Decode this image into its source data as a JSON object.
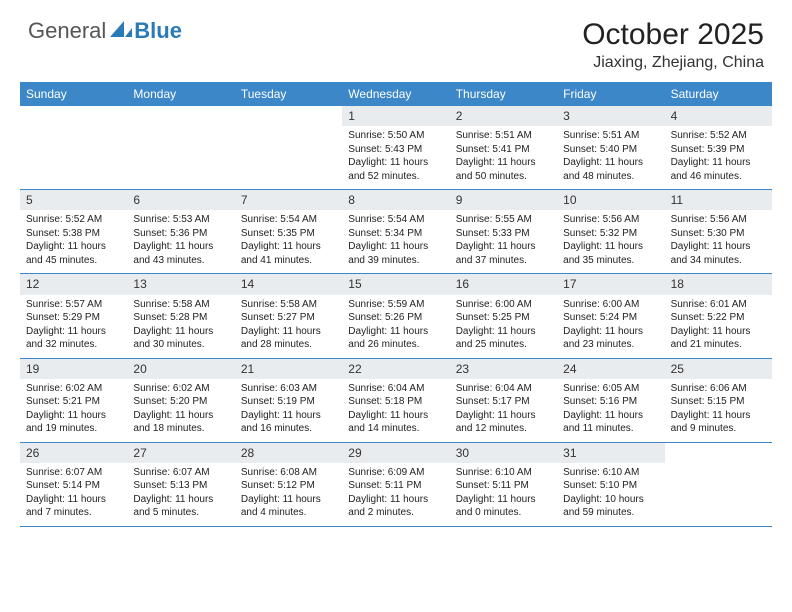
{
  "logo": {
    "text1": "General",
    "text2": "Blue"
  },
  "title": "October 2025",
  "location": "Jiaxing, Zhejiang, China",
  "colors": {
    "header_bg": "#3b87c8",
    "daynum_bg": "#e9ecef",
    "border": "#3b87c8",
    "logo_blue": "#2a7ab8",
    "text": "#222222",
    "background": "#ffffff"
  },
  "dayNames": [
    "Sunday",
    "Monday",
    "Tuesday",
    "Wednesday",
    "Thursday",
    "Friday",
    "Saturday"
  ],
  "weeks": [
    [
      {
        "num": "",
        "sunrise": "",
        "sunset": "",
        "daylight": "",
        "empty": true
      },
      {
        "num": "",
        "sunrise": "",
        "sunset": "",
        "daylight": "",
        "empty": true
      },
      {
        "num": "",
        "sunrise": "",
        "sunset": "",
        "daylight": "",
        "empty": true
      },
      {
        "num": "1",
        "sunrise": "5:50 AM",
        "sunset": "5:43 PM",
        "daylight": "11 hours and 52 minutes."
      },
      {
        "num": "2",
        "sunrise": "5:51 AM",
        "sunset": "5:41 PM",
        "daylight": "11 hours and 50 minutes."
      },
      {
        "num": "3",
        "sunrise": "5:51 AM",
        "sunset": "5:40 PM",
        "daylight": "11 hours and 48 minutes."
      },
      {
        "num": "4",
        "sunrise": "5:52 AM",
        "sunset": "5:39 PM",
        "daylight": "11 hours and 46 minutes."
      }
    ],
    [
      {
        "num": "5",
        "sunrise": "5:52 AM",
        "sunset": "5:38 PM",
        "daylight": "11 hours and 45 minutes."
      },
      {
        "num": "6",
        "sunrise": "5:53 AM",
        "sunset": "5:36 PM",
        "daylight": "11 hours and 43 minutes."
      },
      {
        "num": "7",
        "sunrise": "5:54 AM",
        "sunset": "5:35 PM",
        "daylight": "11 hours and 41 minutes."
      },
      {
        "num": "8",
        "sunrise": "5:54 AM",
        "sunset": "5:34 PM",
        "daylight": "11 hours and 39 minutes."
      },
      {
        "num": "9",
        "sunrise": "5:55 AM",
        "sunset": "5:33 PM",
        "daylight": "11 hours and 37 minutes."
      },
      {
        "num": "10",
        "sunrise": "5:56 AM",
        "sunset": "5:32 PM",
        "daylight": "11 hours and 35 minutes."
      },
      {
        "num": "11",
        "sunrise": "5:56 AM",
        "sunset": "5:30 PM",
        "daylight": "11 hours and 34 minutes."
      }
    ],
    [
      {
        "num": "12",
        "sunrise": "5:57 AM",
        "sunset": "5:29 PM",
        "daylight": "11 hours and 32 minutes."
      },
      {
        "num": "13",
        "sunrise": "5:58 AM",
        "sunset": "5:28 PM",
        "daylight": "11 hours and 30 minutes."
      },
      {
        "num": "14",
        "sunrise": "5:58 AM",
        "sunset": "5:27 PM",
        "daylight": "11 hours and 28 minutes."
      },
      {
        "num": "15",
        "sunrise": "5:59 AM",
        "sunset": "5:26 PM",
        "daylight": "11 hours and 26 minutes."
      },
      {
        "num": "16",
        "sunrise": "6:00 AM",
        "sunset": "5:25 PM",
        "daylight": "11 hours and 25 minutes."
      },
      {
        "num": "17",
        "sunrise": "6:00 AM",
        "sunset": "5:24 PM",
        "daylight": "11 hours and 23 minutes."
      },
      {
        "num": "18",
        "sunrise": "6:01 AM",
        "sunset": "5:22 PM",
        "daylight": "11 hours and 21 minutes."
      }
    ],
    [
      {
        "num": "19",
        "sunrise": "6:02 AM",
        "sunset": "5:21 PM",
        "daylight": "11 hours and 19 minutes."
      },
      {
        "num": "20",
        "sunrise": "6:02 AM",
        "sunset": "5:20 PM",
        "daylight": "11 hours and 18 minutes."
      },
      {
        "num": "21",
        "sunrise": "6:03 AM",
        "sunset": "5:19 PM",
        "daylight": "11 hours and 16 minutes."
      },
      {
        "num": "22",
        "sunrise": "6:04 AM",
        "sunset": "5:18 PM",
        "daylight": "11 hours and 14 minutes."
      },
      {
        "num": "23",
        "sunrise": "6:04 AM",
        "sunset": "5:17 PM",
        "daylight": "11 hours and 12 minutes."
      },
      {
        "num": "24",
        "sunrise": "6:05 AM",
        "sunset": "5:16 PM",
        "daylight": "11 hours and 11 minutes."
      },
      {
        "num": "25",
        "sunrise": "6:06 AM",
        "sunset": "5:15 PM",
        "daylight": "11 hours and 9 minutes."
      }
    ],
    [
      {
        "num": "26",
        "sunrise": "6:07 AM",
        "sunset": "5:14 PM",
        "daylight": "11 hours and 7 minutes."
      },
      {
        "num": "27",
        "sunrise": "6:07 AM",
        "sunset": "5:13 PM",
        "daylight": "11 hours and 5 minutes."
      },
      {
        "num": "28",
        "sunrise": "6:08 AM",
        "sunset": "5:12 PM",
        "daylight": "11 hours and 4 minutes."
      },
      {
        "num": "29",
        "sunrise": "6:09 AM",
        "sunset": "5:11 PM",
        "daylight": "11 hours and 2 minutes."
      },
      {
        "num": "30",
        "sunrise": "6:10 AM",
        "sunset": "5:11 PM",
        "daylight": "11 hours and 0 minutes."
      },
      {
        "num": "31",
        "sunrise": "6:10 AM",
        "sunset": "5:10 PM",
        "daylight": "10 hours and 59 minutes."
      },
      {
        "num": "",
        "sunrise": "",
        "sunset": "",
        "daylight": "",
        "empty": true
      }
    ]
  ],
  "labels": {
    "sunrise": "Sunrise:",
    "sunset": "Sunset:",
    "daylight": "Daylight:"
  }
}
